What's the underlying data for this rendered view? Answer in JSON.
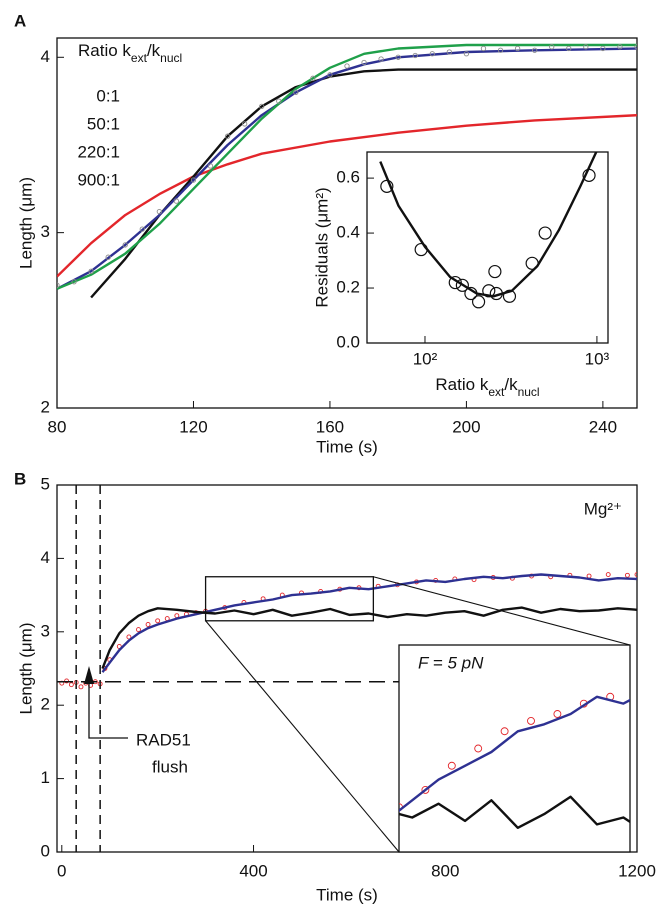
{
  "chart_data": [
    {
      "type": "line",
      "panel_label": "A",
      "xlabel": "Time (s)",
      "ylabel": "Length (μm)",
      "xlim": [
        80,
        250
      ],
      "xticks": [
        80,
        120,
        160,
        200,
        240
      ],
      "ylim": [
        2,
        4.11
      ],
      "yticks": [
        2,
        3,
        4
      ],
      "legend_title": [
        "Ratio k",
        "ext",
        "/k",
        "nucl"
      ],
      "series": [
        {
          "name": "0:1",
          "color": "#e3262b",
          "mode": "line",
          "x": [
            80,
            90,
            100,
            110,
            120,
            130,
            140,
            160,
            180,
            200,
            220,
            250
          ],
          "values": [
            2.75,
            2.94,
            3.1,
            3.22,
            3.32,
            3.39,
            3.45,
            3.52,
            3.57,
            3.61,
            3.64,
            3.67
          ]
        },
        {
          "name": "50:1",
          "color": "#111111",
          "mode": "line",
          "x": [
            90,
            100,
            110,
            120,
            130,
            140,
            150,
            160,
            170,
            180,
            250
          ],
          "values": [
            2.63,
            2.85,
            3.1,
            3.32,
            3.55,
            3.72,
            3.83,
            3.89,
            3.92,
            3.93,
            3.93
          ]
        },
        {
          "name": "220:1",
          "color": "#2e3192",
          "mode": "line",
          "x": [
            80,
            90,
            100,
            110,
            120,
            130,
            140,
            150,
            160,
            170,
            180,
            200,
            220,
            250
          ],
          "values": [
            2.68,
            2.78,
            2.93,
            3.1,
            3.3,
            3.5,
            3.67,
            3.8,
            3.9,
            3.96,
            4.0,
            4.03,
            4.04,
            4.05
          ]
        },
        {
          "name": "900:1",
          "color": "#1fa04a",
          "mode": "line",
          "x": [
            80,
            90,
            100,
            110,
            120,
            130,
            140,
            150,
            160,
            170,
            180,
            200,
            250
          ],
          "values": [
            2.68,
            2.76,
            2.88,
            3.05,
            3.25,
            3.45,
            3.65,
            3.82,
            3.94,
            4.02,
            4.05,
            4.07,
            4.07
          ]
        },
        {
          "color": "#8c8c8c",
          "mode": "markers",
          "x": [
            80,
            85,
            90,
            95,
            100,
            105,
            110,
            115,
            120,
            125,
            130,
            135,
            140,
            145,
            150,
            155,
            160,
            165,
            170,
            175,
            180,
            185,
            190,
            195,
            200,
            205,
            210,
            215,
            220,
            225,
            230,
            235,
            240,
            245,
            250
          ],
          "values": [
            2.7,
            2.72,
            2.78,
            2.86,
            2.93,
            3.02,
            3.12,
            3.18,
            3.3,
            3.38,
            3.55,
            3.62,
            3.72,
            3.75,
            3.8,
            3.88,
            3.9,
            3.95,
            3.97,
            3.99,
            4.0,
            4.01,
            4.02,
            4.03,
            4.02,
            4.05,
            4.04,
            4.05,
            4.04,
            4.06,
            4.05,
            4.06,
            4.05,
            4.06,
            4.06
          ]
        }
      ]
    },
    {
      "type": "scatter",
      "xscale": "log",
      "xlabel": [
        "Ratio k",
        "ext",
        "/k",
        "nucl"
      ],
      "ylabel": "Residuals (μm²)",
      "xlim": [
        46,
        1160
      ],
      "xticks": [
        {
          "value": 100,
          "label": "10²"
        },
        {
          "value": 1000,
          "label": "10³"
        }
      ],
      "ylim": [
        0,
        0.695
      ],
      "yticks": [
        {
          "value": 0,
          "label": "0.0"
        },
        0.2,
        0.4,
        0.6
      ],
      "series": [
        {
          "color": "#111111",
          "mode": "markers",
          "x": [
            60,
            95,
            150,
            165,
            185,
            205,
            235,
            255,
            260,
            310,
            420,
            500,
            900
          ],
          "values": [
            0.57,
            0.34,
            0.22,
            0.21,
            0.18,
            0.15,
            0.19,
            0.26,
            0.18,
            0.17,
            0.29,
            0.4,
            0.61
          ]
        },
        {
          "color": "#111111",
          "mode": "line",
          "x": [
            55,
            70,
            100,
            140,
            200,
            250,
            320,
            450,
            600,
            800,
            1000
          ],
          "values": [
            0.66,
            0.5,
            0.35,
            0.24,
            0.18,
            0.17,
            0.19,
            0.28,
            0.41,
            0.57,
            0.7
          ]
        }
      ]
    },
    {
      "type": "line",
      "panel_label": "B",
      "xlabel": "Time (s)",
      "ylabel": "Length (μm)",
      "xlim": [
        -10,
        1200
      ],
      "xticks": [
        0,
        400,
        800,
        1200
      ],
      "ylim": [
        0,
        5
      ],
      "yticks": [
        0,
        1,
        2,
        3,
        4,
        5
      ],
      "annotation": "Mg²⁺",
      "vlines": [
        30,
        80
      ],
      "hline": 2.32,
      "flush_label": [
        "RAD51",
        "flush"
      ],
      "inset_label": "F = 5 pN",
      "zoom": {
        "xlim": [
          300,
          650
        ],
        "ylim": [
          3.15,
          3.75
        ]
      },
      "series": [
        {
          "color": "#e3262b",
          "mode": "markers",
          "x": [
            0,
            10,
            20,
            30,
            40,
            50,
            60,
            70,
            80,
            90,
            100,
            120,
            140,
            160,
            180,
            200,
            220,
            240,
            260,
            280,
            300,
            340,
            380,
            420,
            460,
            500,
            540,
            580,
            620,
            660,
            700,
            740,
            780,
            820,
            860,
            900,
            940,
            980,
            1020,
            1060,
            1100,
            1140,
            1180,
            1200
          ],
          "values": [
            2.3,
            2.33,
            2.28,
            2.31,
            2.25,
            2.3,
            2.27,
            2.32,
            2.29,
            2.5,
            2.62,
            2.8,
            2.93,
            3.03,
            3.1,
            3.15,
            3.18,
            3.22,
            3.24,
            3.26,
            3.28,
            3.33,
            3.4,
            3.45,
            3.5,
            3.53,
            3.55,
            3.58,
            3.6,
            3.62,
            3.64,
            3.68,
            3.7,
            3.72,
            3.71,
            3.74,
            3.73,
            3.76,
            3.75,
            3.77,
            3.76,
            3.78,
            3.77,
            3.78
          ]
        },
        {
          "color": "#2e3192",
          "mode": "line",
          "x": [
            85,
            100,
            120,
            140,
            160,
            180,
            200,
            240,
            280,
            320,
            360,
            400,
            440,
            480,
            520,
            560,
            600,
            640,
            680,
            720,
            760,
            800,
            840,
            880,
            920,
            960,
            1000,
            1040,
            1080,
            1120,
            1160,
            1200
          ],
          "values": [
            2.45,
            2.58,
            2.75,
            2.88,
            2.98,
            3.05,
            3.1,
            3.18,
            3.24,
            3.3,
            3.36,
            3.4,
            3.44,
            3.5,
            3.52,
            3.55,
            3.6,
            3.58,
            3.62,
            3.66,
            3.7,
            3.68,
            3.72,
            3.75,
            3.73,
            3.76,
            3.78,
            3.76,
            3.74,
            3.7,
            3.73,
            3.72
          ]
        },
        {
          "color": "#111111",
          "mode": "line",
          "x": [
            85,
            100,
            120,
            140,
            160,
            180,
            200,
            240,
            280,
            320,
            360,
            400,
            440,
            480,
            520,
            560,
            600,
            640,
            680,
            720,
            760,
            800,
            840,
            880,
            920,
            960,
            1000,
            1040,
            1080,
            1120,
            1160,
            1200
          ],
          "values": [
            2.5,
            2.75,
            2.98,
            3.12,
            3.22,
            3.28,
            3.32,
            3.3,
            3.27,
            3.25,
            3.29,
            3.24,
            3.3,
            3.22,
            3.26,
            3.31,
            3.23,
            3.25,
            3.2,
            3.24,
            3.22,
            3.26,
            3.28,
            3.22,
            3.3,
            3.33,
            3.26,
            3.31,
            3.28,
            3.29,
            3.32,
            3.3
          ]
        }
      ]
    }
  ]
}
